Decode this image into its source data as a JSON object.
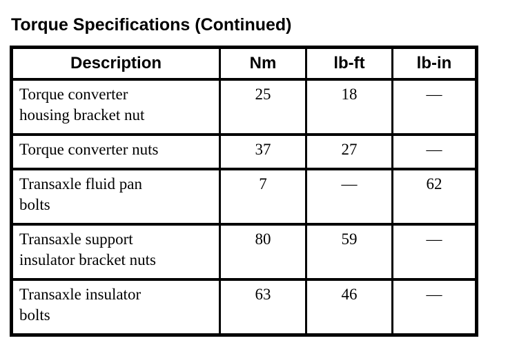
{
  "title": "Torque Specifications (Continued)",
  "table": {
    "columns": {
      "description": "Description",
      "nm": "Nm",
      "lbft": "lb-ft",
      "lbin": "lb-in"
    },
    "rows": [
      {
        "description": "Torque converter\nhousing bracket nut",
        "nm": "25",
        "lbft": "18",
        "lbin": "—"
      },
      {
        "description": "Torque converter nuts",
        "nm": "37",
        "lbft": "27",
        "lbin": "—"
      },
      {
        "description": "Transaxle fluid pan\nbolts",
        "nm": "7",
        "lbft": "—",
        "lbin": "62"
      },
      {
        "description": "Transaxle support\ninsulator bracket nuts",
        "nm": "80",
        "lbft": "59",
        "lbin": "—"
      },
      {
        "description": "Transaxle insulator\nbolts",
        "nm": "63",
        "lbft": "46",
        "lbin": "—"
      }
    ]
  }
}
